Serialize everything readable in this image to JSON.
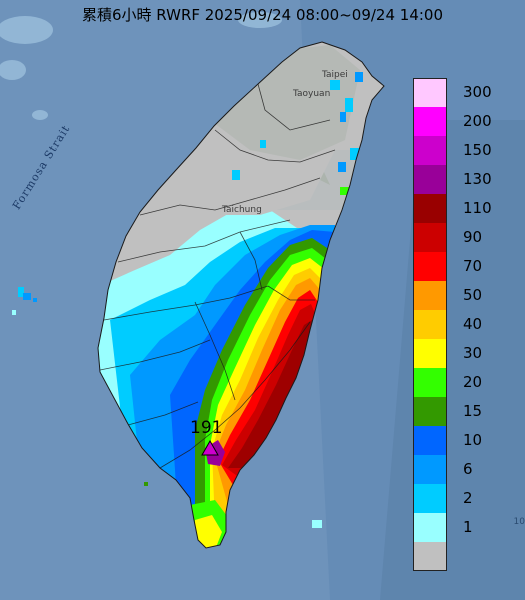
{
  "title": "累積6小時 RWRF 2025/09/24 08:00~09/24 14:00",
  "strait_label": "Formosa Strait",
  "places": {
    "taoyuan": "Taoyuan",
    "taipei": "Taipei",
    "taichung": "Taichung"
  },
  "peak": {
    "value": "191"
  },
  "legend": [
    {
      "label": "300",
      "color": "#ffc8ff"
    },
    {
      "label": "200",
      "color": "#ff00ff"
    },
    {
      "label": "150",
      "color": "#cc00cc"
    },
    {
      "label": "130",
      "color": "#990099"
    },
    {
      "label": "110",
      "color": "#990000"
    },
    {
      "label": "90",
      "color": "#cc0000"
    },
    {
      "label": "70",
      "color": "#ff0000"
    },
    {
      "label": "50",
      "color": "#ff9900"
    },
    {
      "label": "40",
      "color": "#ffcc00"
    },
    {
      "label": "30",
      "color": "#ffff00"
    },
    {
      "label": "20",
      "color": "#33ff00"
    },
    {
      "label": "15",
      "color": "#339900"
    },
    {
      "label": "10",
      "color": "#0066ff"
    },
    {
      "label": "6",
      "color": "#0099ff"
    },
    {
      "label": "2",
      "color": "#00ccff"
    },
    {
      "label": "1",
      "color": "#99ffff"
    },
    {
      "label": "",
      "color": "#c0c0c0"
    }
  ],
  "edge_tick": "10"
}
